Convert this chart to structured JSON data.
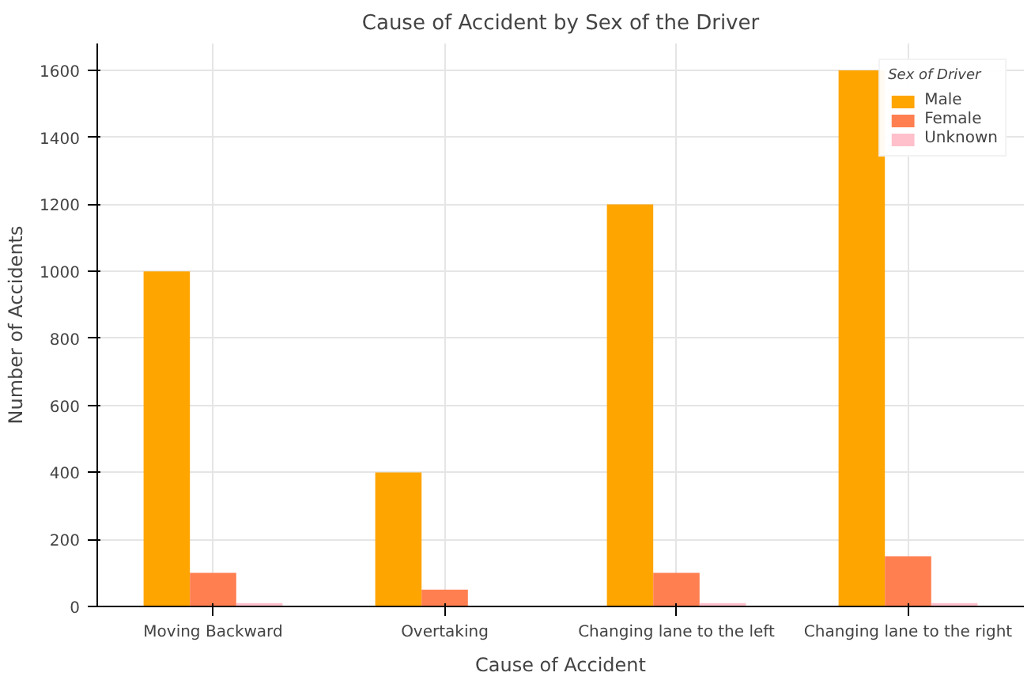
{
  "chart_data": {
    "type": "bar",
    "title": "Cause of Accident by Sex of the Driver",
    "xlabel": "Cause of Accident",
    "ylabel": "Number of Accidents",
    "legend_title": "Sex of Driver",
    "categories": [
      "Moving Backward",
      "Overtaking",
      "Changing lane to the left",
      "Changing lane to the right"
    ],
    "series": [
      {
        "name": "Male",
        "color": "#ffa500",
        "values": [
          1000,
          400,
          1200,
          1600
        ]
      },
      {
        "name": "Female",
        "color": "#ff7f50",
        "values": [
          100,
          50,
          100,
          150
        ]
      },
      {
        "name": "Unknown",
        "color": "#ffc0cb",
        "values": [
          10,
          0,
          10,
          10
        ]
      }
    ],
    "ylim": [
      0,
      1680
    ],
    "yticks": [
      0,
      200,
      400,
      600,
      800,
      1000,
      1200,
      1400,
      1600
    ],
    "grid": true,
    "legend": "top right"
  }
}
